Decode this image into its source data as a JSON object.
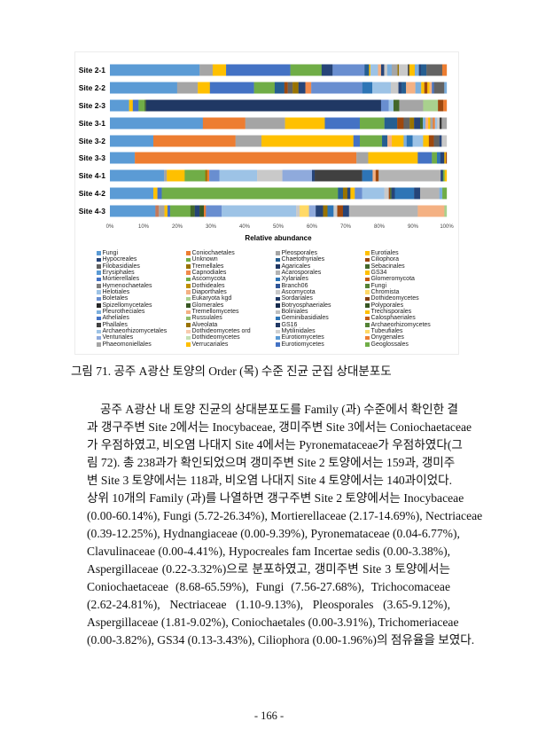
{
  "chart_data": {
    "type": "bar",
    "orientation": "horizontal-stacked-100",
    "categories": [
      "Site 2-1",
      "Site 2-2",
      "Site 2-3",
      "Site 3-1",
      "Site 3-2",
      "Site 3-3",
      "Site 4-1",
      "Site 4-2",
      "Site 4-3"
    ],
    "xlabel": "Relative abundance",
    "xlim": [
      0,
      100
    ],
    "x_ticks": [
      "0%",
      "10%",
      "20%",
      "30%",
      "40%",
      "50%",
      "60%",
      "70%",
      "80%",
      "90%",
      "100%"
    ],
    "grid": false,
    "legend_position": "bottom",
    "segments": [
      [
        [
          26.1,
          "#5b9bd5"
        ],
        [
          3.8,
          "#a5a5a5"
        ],
        [
          3.9,
          "#ffc000"
        ],
        [
          18.7,
          "#4472c4"
        ],
        [
          9.1,
          "#70ad47"
        ],
        [
          3.2,
          "#264478"
        ],
        [
          9.3,
          "#698ed0"
        ],
        [
          1.3,
          "#255e91"
        ],
        [
          0.4,
          "#ffc000"
        ],
        [
          2.2,
          "#9dc3e6"
        ],
        [
          0.9,
          "#f4b183"
        ],
        [
          0.9,
          "#264478"
        ],
        [
          0.9,
          "#c9c9c9"
        ],
        [
          1.3,
          "#7cafdd"
        ],
        [
          1.7,
          "#a5a5a5"
        ],
        [
          0.4,
          "#997300"
        ],
        [
          2.6,
          "#c9c9c9"
        ],
        [
          0.4,
          "#333333"
        ],
        [
          1.6,
          "#ffc000"
        ],
        [
          1.2,
          "#7cafdd"
        ],
        [
          0.6,
          "#264478"
        ],
        [
          1.6,
          "#255e91"
        ],
        [
          4.6,
          "#636363"
        ],
        [
          1.3,
          "#ed7d31"
        ]
      ],
      [
        [
          19.5,
          "#5b9bd5"
        ],
        [
          6.0,
          "#a5a5a5"
        ],
        [
          3.5,
          "#ffc000"
        ],
        [
          12.8,
          "#4472c4"
        ],
        [
          6.0,
          "#70ad47"
        ],
        [
          2.8,
          "#255e91"
        ],
        [
          1.0,
          "#9e480e"
        ],
        [
          1.4,
          "#636363"
        ],
        [
          1.7,
          "#997300"
        ],
        [
          2.0,
          "#264478"
        ],
        [
          1.7,
          "#f08a4b"
        ],
        [
          14.8,
          "#698ed0"
        ],
        [
          2.9,
          "#2e75b6"
        ],
        [
          5.4,
          "#9dc3e6"
        ],
        [
          2.2,
          "#c9c9c9"
        ],
        [
          0.9,
          "#264478"
        ],
        [
          1.3,
          "#255e91"
        ],
        [
          2.7,
          "#f4b183"
        ],
        [
          1.7,
          "#7cafdd"
        ],
        [
          0.9,
          "#ffc000"
        ],
        [
          0.9,
          "#9e480e"
        ],
        [
          0.6,
          "#ffc000"
        ],
        [
          0.7,
          "#f4b183"
        ],
        [
          0.6,
          "#4472c4"
        ],
        [
          3.0,
          "#636363"
        ],
        [
          0.7,
          "#7cafdd"
        ]
      ],
      [
        [
          5.7,
          "#5b9bd5"
        ],
        [
          1.1,
          "#ffc000"
        ],
        [
          1.7,
          "#4472c4"
        ],
        [
          1.8,
          "#70ad47"
        ],
        [
          0.4,
          "#43682b"
        ],
        [
          69.8,
          "#203864"
        ],
        [
          2.3,
          "#698ed0"
        ],
        [
          1.4,
          "#9dc3e6"
        ],
        [
          1.7,
          "#43682b"
        ],
        [
          7.1,
          "#a5a5a5"
        ],
        [
          4.4,
          "#a9d18e"
        ],
        [
          1.6,
          "#9e480e"
        ],
        [
          1.0,
          "#ed7d31"
        ]
      ],
      [
        [
          27.6,
          "#5b9bd5"
        ],
        [
          12.6,
          "#ed7d31"
        ],
        [
          11.8,
          "#a5a5a5"
        ],
        [
          11.8,
          "#ffc000"
        ],
        [
          10.4,
          "#4472c4"
        ],
        [
          7.3,
          "#70ad47"
        ],
        [
          3.8,
          "#255e91"
        ],
        [
          1.9,
          "#9e480e"
        ],
        [
          1.8,
          "#636363"
        ],
        [
          1.3,
          "#997300"
        ],
        [
          1.8,
          "#264478"
        ],
        [
          0.8,
          "#43682b"
        ],
        [
          0.8,
          "#7cafdd"
        ],
        [
          0.8,
          "#f4b183"
        ],
        [
          0.6,
          "#ffc000"
        ],
        [
          0.8,
          "#a5a5a5"
        ],
        [
          0.6,
          "#ed7d31"
        ],
        [
          0.6,
          "#9dc3e6"
        ],
        [
          0.8,
          "#c9c9c9"
        ],
        [
          0.6,
          "#333333"
        ],
        [
          1.5,
          "#a5a5a5"
        ]
      ],
      [
        [
          12.9,
          "#5b9bd5"
        ],
        [
          24.4,
          "#ed7d31"
        ],
        [
          7.7,
          "#a5a5a5"
        ],
        [
          27.3,
          "#ffc000"
        ],
        [
          1.9,
          "#4472c4"
        ],
        [
          6.6,
          "#70ad47"
        ],
        [
          1.6,
          "#255e91"
        ],
        [
          1.3,
          "#f4b183"
        ],
        [
          3.5,
          "#ffc000"
        ],
        [
          0.9,
          "#7cafdd"
        ],
        [
          1.8,
          "#2e75b6"
        ],
        [
          3.1,
          "#9dc3e6"
        ],
        [
          1.7,
          "#ffc000"
        ],
        [
          1.5,
          "#9e480e"
        ],
        [
          1.6,
          "#636363"
        ],
        [
          0.7,
          "#264478"
        ],
        [
          1.5,
          "#c9c9c9"
        ]
      ],
      [
        [
          7.4,
          "#5b9bd5"
        ],
        [
          65.8,
          "#ed7d31"
        ],
        [
          3.5,
          "#a5a5a5"
        ],
        [
          14.7,
          "#ffc000"
        ],
        [
          4.2,
          "#4472c4"
        ],
        [
          1.5,
          "#70ad47"
        ],
        [
          1.0,
          "#2e75b6"
        ],
        [
          1.2,
          "#264478"
        ],
        [
          0.4,
          "#ffc000"
        ],
        [
          0.3,
          "#9e480e"
        ]
      ],
      [
        [
          16.1,
          "#5b9bd5"
        ],
        [
          0.8,
          "#a5a5a5"
        ],
        [
          5.3,
          "#ffc000"
        ],
        [
          6.1,
          "#70ad47"
        ],
        [
          0.6,
          "#997300"
        ],
        [
          0.6,
          "#ed7d31"
        ],
        [
          3.0,
          "#698ed0"
        ],
        [
          11.2,
          "#9dc3e6"
        ],
        [
          7.5,
          "#c9c9c9"
        ],
        [
          8.8,
          "#8faadc"
        ],
        [
          0.8,
          "#264478"
        ],
        [
          14.1,
          "#404040"
        ],
        [
          3.1,
          "#2e75b6"
        ],
        [
          0.9,
          "#f4b183"
        ],
        [
          0.9,
          "#9e480e"
        ],
        [
          18.4,
          "#b4b4b4"
        ],
        [
          0.7,
          "#264478"
        ],
        [
          0.5,
          "#70ad47"
        ],
        [
          0.6,
          "#ffc000"
        ]
      ],
      [
        [
          12.9,
          "#5b9bd5"
        ],
        [
          1.2,
          "#ffc000"
        ],
        [
          1.3,
          "#4472c4"
        ],
        [
          52.3,
          "#70ad47"
        ],
        [
          1.5,
          "#255e91"
        ],
        [
          1.3,
          "#997300"
        ],
        [
          0.9,
          "#264478"
        ],
        [
          1.3,
          "#ffc000"
        ],
        [
          2.2,
          "#698ed0"
        ],
        [
          6.6,
          "#9dc3e6"
        ],
        [
          1.3,
          "#c9c9c9"
        ],
        [
          0.4,
          "#9e480e"
        ],
        [
          0.4,
          "#43682b"
        ],
        [
          1.0,
          "#264478"
        ],
        [
          5.7,
          "#2e75b6"
        ],
        [
          1.8,
          "#264478"
        ],
        [
          5.7,
          "#b4b4b4"
        ],
        [
          0.9,
          "#7cafdd"
        ],
        [
          1.3,
          "#70ad47"
        ]
      ],
      [
        [
          13.5,
          "#5b9bd5"
        ],
        [
          1.0,
          "#c5795a"
        ],
        [
          1.7,
          "#a5a5a5"
        ],
        [
          0.9,
          "#ffc000"
        ],
        [
          0.8,
          "#4472c4"
        ],
        [
          6.0,
          "#70ad47"
        ],
        [
          1.3,
          "#43682b"
        ],
        [
          1.4,
          "#264478"
        ],
        [
          1.3,
          "#385723"
        ],
        [
          0.6,
          "#ed7d31"
        ],
        [
          4.7,
          "#698ed0"
        ],
        [
          22.1,
          "#9dc3e6"
        ],
        [
          1.0,
          "#c9c9c9"
        ],
        [
          2.8,
          "#ffd966"
        ],
        [
          2.0,
          "#8faadc"
        ],
        [
          2.2,
          "#264478"
        ],
        [
          1.3,
          "#997300"
        ],
        [
          1.8,
          "#2e75b6"
        ],
        [
          1.1,
          "#c9c9c9"
        ],
        [
          1.7,
          "#9e480e"
        ],
        [
          1.8,
          "#264478"
        ],
        [
          20.4,
          "#b4b4b4"
        ],
        [
          7.9,
          "#f4b183"
        ],
        [
          0.7,
          "#a9d18e"
        ]
      ]
    ],
    "legend": [
      {
        "label": "Fungi",
        "color": "#5b9bd5"
      },
      {
        "label": "Hypocreales",
        "color": "#264478"
      },
      {
        "label": "Filobasidiales",
        "color": "#636363"
      },
      {
        "label": "Erysiphales",
        "color": "#5b9bd5"
      },
      {
        "label": "Mortierellales",
        "color": "#4472c4"
      },
      {
        "label": "Hymenochaetales",
        "color": "#7f7f7f"
      },
      {
        "label": "Helotiales",
        "color": "#9dc3e6"
      },
      {
        "label": "Boletales",
        "color": "#698ed0"
      },
      {
        "label": "Spizellomycetales",
        "color": "#262626"
      },
      {
        "label": "Pleurotheciales",
        "color": "#7cafdd"
      },
      {
        "label": "Atheliales",
        "color": "#4472c4"
      },
      {
        "label": "Phallales",
        "color": "#404040"
      },
      {
        "label": "Archaeorhizomycetales",
        "color": "#9dc3e6"
      },
      {
        "label": "Venturiales",
        "color": "#8faadc"
      },
      {
        "label": "Phaeomoniellales",
        "color": "#a5a5a5"
      },
      {
        "label": "Coniochaetales",
        "color": "#ed7d31"
      },
      {
        "label": "Unknown",
        "color": "#70ad47"
      },
      {
        "label": "Tremellales",
        "color": "#997300"
      },
      {
        "label": "Capnodiales",
        "color": "#f08a4b"
      },
      {
        "label": "Ascomycota",
        "color": "#70ad47"
      },
      {
        "label": "Dothideales",
        "color": "#bf9000"
      },
      {
        "label": "Diaporthales",
        "color": "#f4b183"
      },
      {
        "label": "Eukaryota kgd",
        "color": "#a9d18e"
      },
      {
        "label": "Glomerales",
        "color": "#385723"
      },
      {
        "label": "Tremellomycetes",
        "color": "#f4b183"
      },
      {
        "label": "Russulales",
        "color": "#8fbc6a"
      },
      {
        "label": "Alveolata",
        "color": "#997300"
      },
      {
        "label": "Dothideomycetes ord",
        "color": "#f8cbad"
      },
      {
        "label": "Dothideomycetes",
        "color": "#c5e0b4"
      },
      {
        "label": "Verrucariales",
        "color": "#ffc000"
      },
      {
        "label": "Pleosporales",
        "color": "#a5a5a5"
      },
      {
        "label": "Chaetothyriales",
        "color": "#255e91"
      },
      {
        "label": "Agaricales",
        "color": "#203864"
      },
      {
        "label": "Acarosporales",
        "color": "#b4b4b4"
      },
      {
        "label": "Xylariales",
        "color": "#2e75b6"
      },
      {
        "label": "Branch06",
        "color": "#2f5597"
      },
      {
        "label": "Ascomycota",
        "color": "#c9c9c9"
      },
      {
        "label": "Sordariales",
        "color": "#1f3864"
      },
      {
        "label": "Botryosphaeriales",
        "color": "#172b4d"
      },
      {
        "label": "Boliniales",
        "color": "#bfbfbf"
      },
      {
        "label": "Geminibasidiales",
        "color": "#2e75b6"
      },
      {
        "label": "GS16",
        "color": "#203864"
      },
      {
        "label": "Mytilinidales",
        "color": "#d0d0d0"
      },
      {
        "label": "Eurotiomycetes",
        "color": "#5b9bd5"
      },
      {
        "label": "Eurotiomycetes",
        "color": "#4472c4"
      },
      {
        "label": "Eurotiales",
        "color": "#ffc000"
      },
      {
        "label": "Ciliophora",
        "color": "#9e480e"
      },
      {
        "label": "Sebacinales",
        "color": "#43682b"
      },
      {
        "label": "GS34",
        "color": "#ffc000"
      },
      {
        "label": "Glomeromycota",
        "color": "#c55a11"
      },
      {
        "label": "Fungi",
        "color": "#548235"
      },
      {
        "label": "Chromista",
        "color": "#ffd966"
      },
      {
        "label": "Dothideomycetes",
        "color": "#843c0c"
      },
      {
        "label": "Polyporales",
        "color": "#375623"
      },
      {
        "label": "Trechisporales",
        "color": "#ffc000"
      },
      {
        "label": "Calosphaeriales",
        "color": "#c55a11"
      },
      {
        "label": "Archaeorhizomycetes",
        "color": "#548235"
      },
      {
        "label": "Tubeufiales",
        "color": "#ffd966"
      },
      {
        "label": "Onygenales",
        "color": "#ed7d31"
      },
      {
        "label": "Geoglossales",
        "color": "#70ad47"
      }
    ]
  },
  "caption": "그림 71. 공주 A광산 토양의 Order (목) 수준 진균 군집 상대분포도",
  "body_lines": [
    "공주 A광산 내 토양 진균의 상대분포도를 Family (과) 수준에서 확인한 결",
    "과 갱구주변 Site 2에서는 Inocybaceae, 갱미주변 Site 3에서는 Coniochaetaceae",
    "가 우점하였고, 비오염 나대지 Site 4에서는 Pyronemataceae가 우점하였다(그",
    "림 72). 총 238과가 확인되었으며 갱미주변 Site 2 토양에서는 159과, 갱미주",
    "변 Site 3 토양에서는 118과, 비오염 나대지 Site 4 토양에서는 140과이었다.",
    "상위 10개의 Family (과)를 나열하면 갱구주변 Site 2 토양에서는 Inocybaceae",
    "(0.00-60.14%), Fungi (5.72-26.34%), Mortierellaceae (2.17-14.69%), Nectriaceae",
    "(0.39-12.25%), Hydnangiaceae (0.00-9.39%), Pyronemataceae (0.04-6.77%),",
    "Clavulinaceae (0.00-4.41%), Hypocreales fam Incertae sedis (0.00-3.38%),",
    "Aspergillaceae (0.22-3.32%)으로 분포하였고, 갱미주변 Site 3 토양에서는",
    "Coniochaetaceae (8.68-65.59%), Fungi (7.56-27.68%), Trichocomaceae",
    "(2.62-24.81%), Nectriaceae (1.10-9.13%), Pleosporales (3.65-9.12%),",
    "Aspergillaceae (1.81-9.02%), Coniochaetales (0.00-3.91%), Trichomeriaceae",
    "(0.00-3.82%), GS34 (0.13-3.43%), Ciliophora (0.00-1.96%)의 점유율을 보였다."
  ],
  "page_number": "- 166 -"
}
